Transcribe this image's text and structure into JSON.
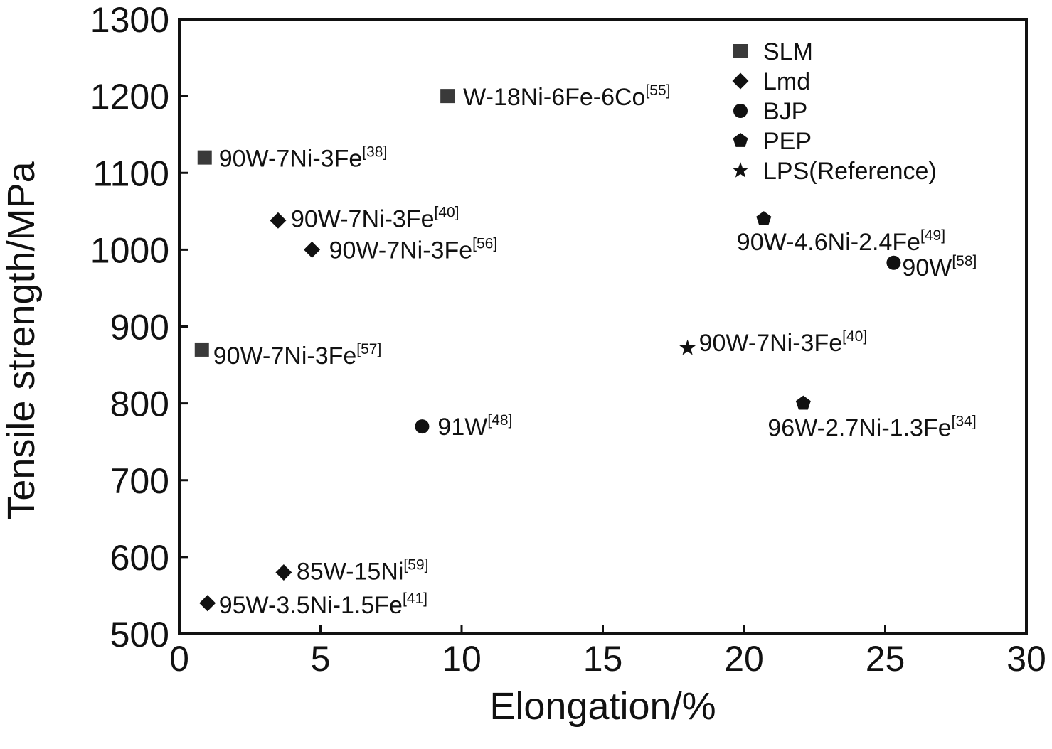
{
  "chart_data": {
    "type": "scatter",
    "title": "",
    "xlabel": "Elongation/%",
    "ylabel": "Tensile strength/MPa",
    "xlim": [
      0,
      30
    ],
    "ylim": [
      500,
      1300
    ],
    "xticks": [
      "0",
      "5",
      "10",
      "15",
      "20",
      "25",
      "30"
    ],
    "yticks": [
      "500",
      "600",
      "700",
      "800",
      "900",
      "1000",
      "1100",
      "1200",
      "1300"
    ],
    "grid": false,
    "legend_position": "top-right",
    "series": [
      {
        "name": "SLM",
        "marker": "square",
        "points": [
          {
            "x": 9.5,
            "y": 1200,
            "label": "W-18Ni-6Fe-6Co",
            "ref": "[55]"
          },
          {
            "x": 0.9,
            "y": 1120,
            "label": "90W-7Ni-3Fe",
            "ref": "[38]"
          },
          {
            "x": 0.8,
            "y": 870,
            "label": "90W-7Ni-3Fe",
            "ref": "[57]"
          }
        ]
      },
      {
        "name": "Lmd",
        "marker": "diamond",
        "points": [
          {
            "x": 3.5,
            "y": 1038,
            "label": "90W-7Ni-3Fe",
            "ref": "[40]"
          },
          {
            "x": 4.7,
            "y": 1000,
            "label": "90W-7Ni-3Fe",
            "ref": "[56]"
          },
          {
            "x": 3.7,
            "y": 580,
            "label": "85W-15Ni",
            "ref": "[59]"
          },
          {
            "x": 1.0,
            "y": 540,
            "label": "95W-3.5Ni-1.5Fe",
            "ref": "[41]"
          }
        ]
      },
      {
        "name": "BJP",
        "marker": "circle",
        "points": [
          {
            "x": 8.6,
            "y": 770,
            "label": "91W",
            "ref": "[48]"
          },
          {
            "x": 25.3,
            "y": 983,
            "label": "90W",
            "ref": "[58]"
          }
        ]
      },
      {
        "name": "PEP",
        "marker": "pentagon",
        "points": [
          {
            "x": 20.7,
            "y": 1040,
            "label": "90W-4.6Ni-2.4Fe",
            "ref": "[49]"
          },
          {
            "x": 22.1,
            "y": 800,
            "label": "96W-2.7Ni-1.3Fe",
            "ref": "[34]"
          }
        ]
      },
      {
        "name": "LPS(Reference)",
        "marker": "star",
        "points": [
          {
            "x": 18.0,
            "y": 872,
            "label": "90W-7Ni-3Fe",
            "ref": "[40]"
          }
        ]
      }
    ]
  },
  "colors": {
    "marker": "#111111",
    "slm_marker": "#3a3a3a",
    "axis": "#111111",
    "background": "#ffffff"
  }
}
